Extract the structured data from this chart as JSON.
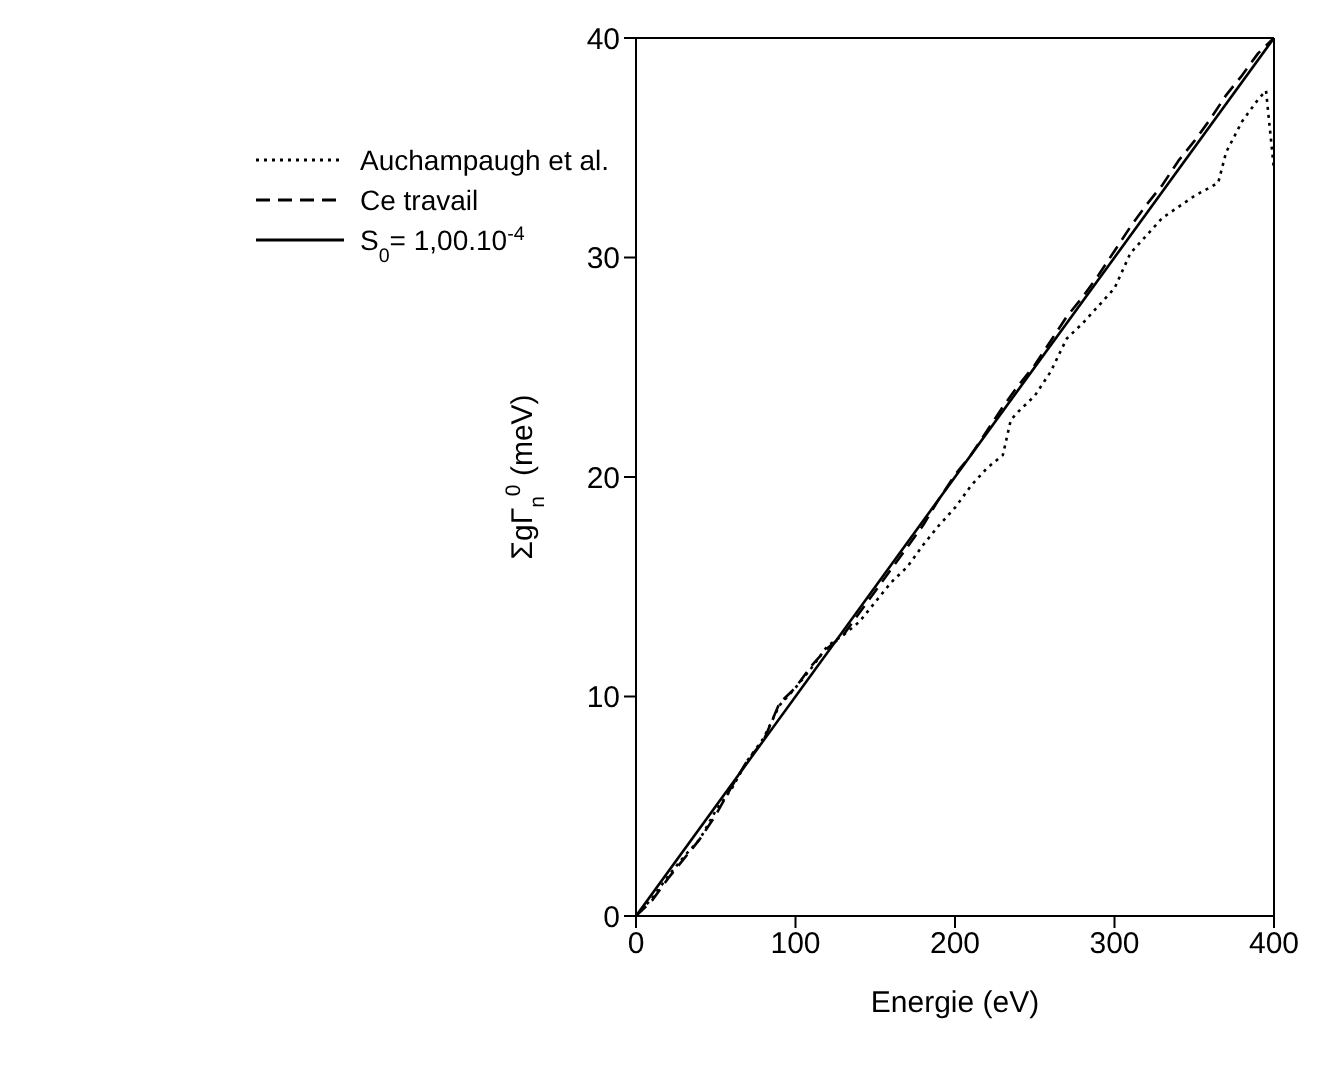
{
  "chart_data": {
    "type": "line",
    "xlabel": "Energie (eV)",
    "ylabel": "ΣgΓ$_{n}$$^{0}$ (meV)",
    "xlim": [
      0,
      400
    ],
    "ylim": [
      0,
      40
    ],
    "xticks": [
      0,
      100,
      200,
      300,
      400
    ],
    "yticks": [
      0,
      10,
      20,
      30,
      40
    ],
    "grid": false,
    "legend": "top left",
    "marker": "none",
    "series": [
      {
        "name": "Auchampaugh et al.",
        "color": "#000000",
        "line_style": "dotted",
        "x": [
          0,
          10,
          20,
          30,
          40,
          50,
          60,
          70,
          80,
          90,
          100,
          110,
          120,
          130,
          140,
          150,
          160,
          170,
          180,
          190,
          200,
          210,
          220,
          230,
          235,
          240,
          250,
          260,
          270,
          280,
          290,
          300,
          310,
          320,
          330,
          340,
          350,
          360,
          365,
          370,
          380,
          390,
          395,
          400
        ],
        "values": [
          0,
          0.8,
          1.8,
          2.7,
          3.5,
          4.8,
          5.8,
          7.1,
          8.1,
          9.6,
          10.4,
          11.3,
          12.3,
          12.8,
          13.4,
          14.3,
          15.2,
          15.9,
          16.9,
          17.8,
          18.6,
          19.6,
          20.4,
          21.0,
          22.6,
          23.0,
          23.7,
          24.8,
          26.3,
          27.0,
          27.8,
          28.6,
          30.2,
          31.0,
          31.8,
          32.3,
          32.8,
          33.2,
          33.4,
          34.8,
          36.2,
          37.2,
          37.6,
          34.0
        ]
      },
      {
        "name": "Ce travail",
        "color": "#000000",
        "line_style": "dashed",
        "x": [
          0,
          10,
          20,
          30,
          40,
          50,
          60,
          70,
          80,
          90,
          100,
          110,
          120,
          130,
          140,
          150,
          160,
          170,
          180,
          190,
          200,
          210,
          220,
          230,
          240,
          250,
          260,
          270,
          280,
          290,
          300,
          310,
          320,
          330,
          340,
          350,
          360,
          370,
          380,
          390,
          400
        ],
        "values": [
          0,
          0.7,
          1.7,
          2.6,
          3.5,
          4.6,
          5.9,
          7.1,
          8.0,
          9.7,
          10.4,
          11.4,
          12.2,
          12.8,
          13.8,
          14.8,
          15.8,
          16.8,
          17.8,
          19.0,
          20.1,
          21.0,
          22.1,
          23.2,
          24.2,
          25.1,
          26.2,
          27.3,
          28.2,
          29.2,
          30.3,
          31.4,
          32.4,
          33.3,
          34.4,
          35.3,
          36.3,
          37.4,
          38.3,
          39.3,
          40.0
        ]
      },
      {
        "name": "S$_{0}$= 1,00.10$^{-4}$",
        "color": "#000000",
        "line_style": "solid",
        "x": [
          0,
          400
        ],
        "values": [
          0,
          40
        ]
      }
    ]
  }
}
